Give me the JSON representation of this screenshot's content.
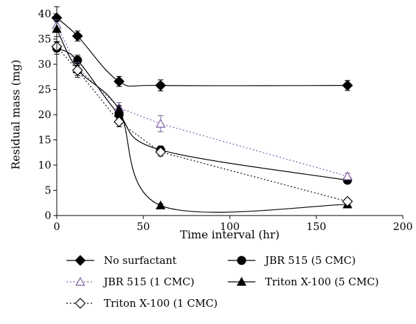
{
  "chart_data": {
    "type": "line",
    "xlabel": "Time interval (hr)",
    "ylabel": "Residual mass (mg)",
    "xlim": [
      0,
      200
    ],
    "ylim": [
      0,
      40
    ],
    "xticks": [
      "0",
      "50",
      "100",
      "150",
      "200"
    ],
    "yticks": [
      "0",
      "5",
      "10",
      "15",
      "20",
      "25",
      "30",
      "35",
      "40"
    ],
    "grid": false,
    "legend_position": "bottom",
    "series": [
      {
        "name": "No surfactant",
        "marker": "diamond-filled",
        "line": "solid",
        "color": "#000000",
        "x": [
          0,
          12,
          36,
          60,
          168
        ],
        "y": [
          39.2,
          35.6,
          26.6,
          25.8,
          25.8
        ],
        "err": [
          2.2,
          1.0,
          1.0,
          1.1,
          1.0
        ]
      },
      {
        "name": "JBR 515 (5 CMC)",
        "marker": "circle-filled",
        "line": "solid",
        "color": "#000000",
        "x": [
          0,
          12,
          36,
          60,
          168
        ],
        "y": [
          33.2,
          30.8,
          20.0,
          13.0,
          7.0
        ],
        "err": [
          1.2,
          1.0,
          0.8,
          0.8,
          0.6
        ]
      },
      {
        "name": "JBR 515 (1 CMC)",
        "marker": "triangle-open",
        "line": "dotted",
        "color": "#7a5aa0",
        "x": [
          0,
          12,
          36,
          60,
          168
        ],
        "y": [
          37.8,
          29.3,
          21.4,
          18.2,
          7.8
        ],
        "err": [
          1.0,
          1.0,
          1.0,
          1.6,
          0.6
        ]
      },
      {
        "name": "Triton X-100 (5 CMC)",
        "marker": "triangle-filled",
        "line": "solid",
        "color": "#000000",
        "x": [
          0,
          12,
          36,
          60,
          168
        ],
        "y": [
          37.0,
          29.0,
          21.0,
          2.0,
          2.2
        ],
        "err": [
          1.5,
          1.6,
          0.8,
          0.3,
          0.3
        ]
      },
      {
        "name": "Triton X-100 (1 CMC)",
        "marker": "diamond-open",
        "line": "dotted",
        "color": "#000000",
        "x": [
          0,
          12,
          36,
          60,
          168
        ],
        "y": [
          33.5,
          28.8,
          18.6,
          12.6,
          2.8
        ],
        "err": [
          1.0,
          1.0,
          1.0,
          0.8,
          0.5
        ]
      }
    ]
  }
}
